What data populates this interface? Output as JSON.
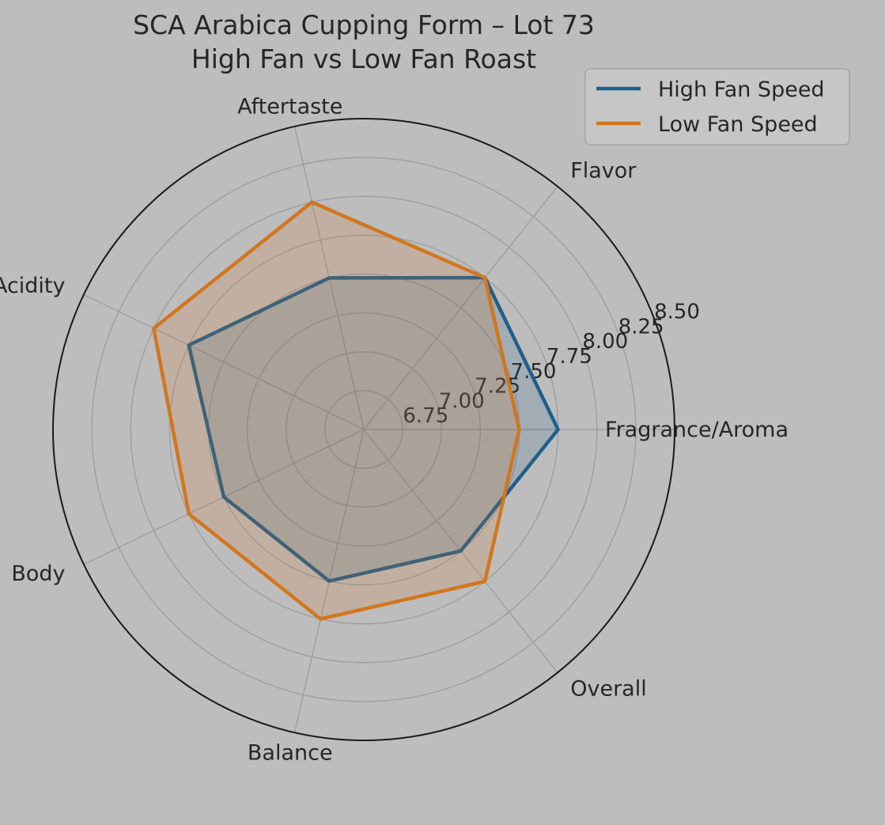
{
  "chart_data": {
    "type": "radar",
    "title": "SCA Arabica Cupping Form – Lot 73",
    "subtitle": "High Fan vs Low Fan Roast",
    "categories": [
      "Fragrance/Aroma",
      "Flavor",
      "Aftertaste",
      "Acidity",
      "Body",
      "Balance",
      "Overall"
    ],
    "radial_ticks": [
      "6.75",
      "7.00",
      "7.25",
      "7.50",
      "7.75",
      "8.00",
      "8.25",
      "8.50"
    ],
    "rlim": [
      6.5,
      8.5
    ],
    "grid": true,
    "legend_position": "top-right",
    "series": [
      {
        "name": "High Fan Speed",
        "color": "#1f5f8b",
        "values": [
          7.75,
          7.75,
          7.5,
          7.75,
          7.5,
          7.5,
          7.5
        ]
      },
      {
        "name": "Low Fan Speed",
        "color": "#d2761f",
        "values": [
          7.5,
          7.75,
          8.0,
          8.0,
          7.75,
          7.75,
          7.75
        ]
      }
    ]
  }
}
